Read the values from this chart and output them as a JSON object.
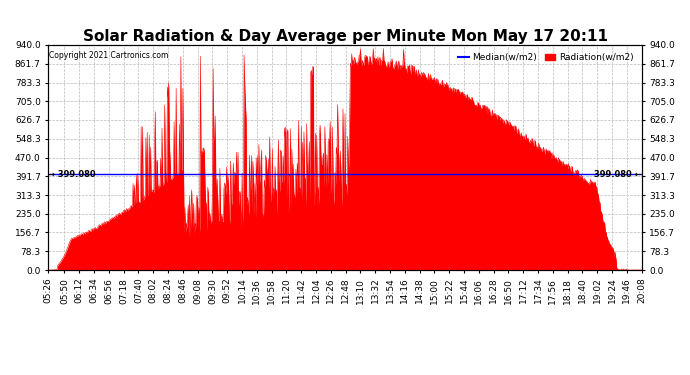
{
  "title": "Solar Radiation & Day Average per Minute Mon May 17 20:11",
  "copyright": "Copyright 2021 Cartronics.com",
  "median_value": 399.08,
  "ymin": 0.0,
  "ymax": 940.0,
  "yticks": [
    0.0,
    78.3,
    156.7,
    235.0,
    313.3,
    391.7,
    470.0,
    548.3,
    626.7,
    705.0,
    783.3,
    861.7,
    940.0
  ],
  "ytick_labels": [
    "0.0",
    "78.3",
    "156.7",
    "235.0",
    "313.3",
    "391.7",
    "470.0",
    "548.3",
    "626.7",
    "705.0",
    "783.3",
    "861.7",
    "940.0"
  ],
  "xstart_minutes": 326,
  "xend_minutes": 1208,
  "xtick_labels": [
    "05:26",
    "05:50",
    "06:12",
    "06:34",
    "06:56",
    "07:18",
    "07:40",
    "08:02",
    "08:24",
    "08:46",
    "09:08",
    "09:30",
    "09:52",
    "10:14",
    "10:36",
    "10:58",
    "11:20",
    "11:42",
    "12:04",
    "12:26",
    "12:48",
    "13:10",
    "13:32",
    "13:54",
    "14:16",
    "14:38",
    "15:00",
    "15:22",
    "15:44",
    "16:06",
    "16:28",
    "16:50",
    "17:12",
    "17:34",
    "17:56",
    "18:18",
    "18:40",
    "19:02",
    "19:24",
    "19:46",
    "20:08"
  ],
  "legend_median_color": "#0000ff",
  "legend_radiation_color": "#ff0000",
  "fill_color": "#ff0000",
  "background_color": "#ffffff",
  "grid_color": "#bbbbbb",
  "title_fontsize": 11,
  "tick_fontsize": 6.5,
  "median_label": "399.080"
}
